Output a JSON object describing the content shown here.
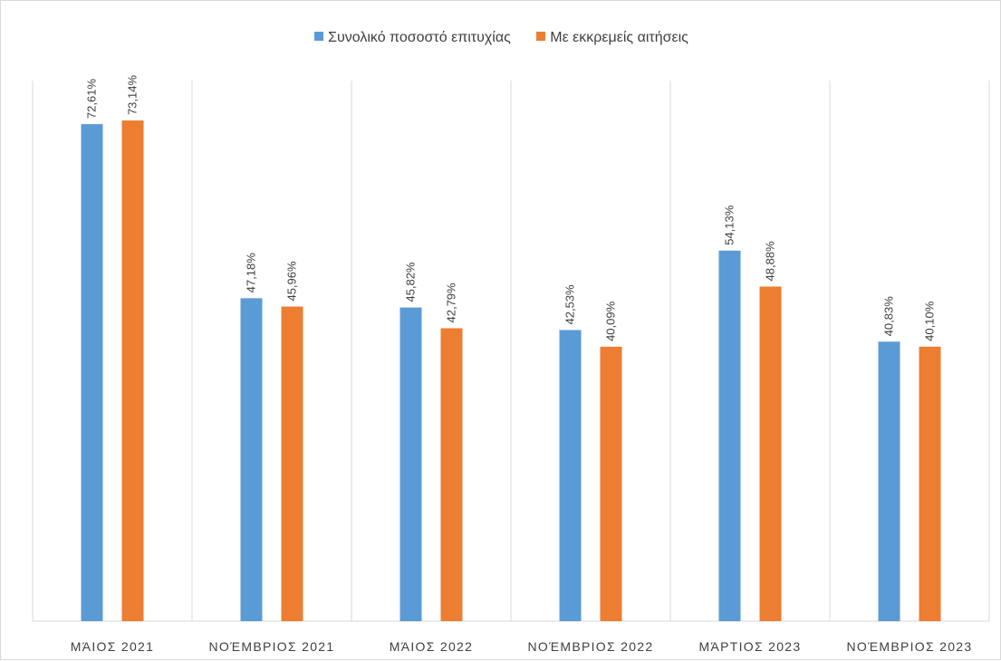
{
  "chart_data": {
    "type": "bar",
    "categories": [
      "ΜΆΙΟΣ 2021",
      "ΝΟΈΜΒΡΙΟΣ 2021",
      "ΜΆΙΟΣ 2022",
      "ΝΟΈΜΒΡΙΟΣ 2022",
      "ΜΆΡΤΙΟΣ 2023",
      "ΝΟΈΜΒΡΙΟΣ 2023"
    ],
    "series": [
      {
        "name": "Συνολικό ποσοστό επιτυχίας",
        "color": "#5B9BD5",
        "values": [
          72.61,
          47.18,
          45.82,
          42.53,
          54.13,
          40.83
        ],
        "labels": [
          "72,61%",
          "47,18%",
          "45,82%",
          "42,53%",
          "54,13%",
          "40,83%"
        ]
      },
      {
        "name": "Με εκκρεμείς αιτήσεις",
        "color": "#ED7D31",
        "values": [
          73.14,
          45.96,
          42.79,
          40.09,
          48.88,
          40.1
        ],
        "labels": [
          "73,14%",
          "45,96%",
          "42,79%",
          "40,09%",
          "48,88%",
          "40,10%"
        ]
      }
    ],
    "xlabel": "",
    "ylabel": "",
    "ylim": [
      0,
      80
    ],
    "grid": "vertical category separators",
    "legend": "top-center",
    "data_labels": "rotated vertical above bars"
  }
}
